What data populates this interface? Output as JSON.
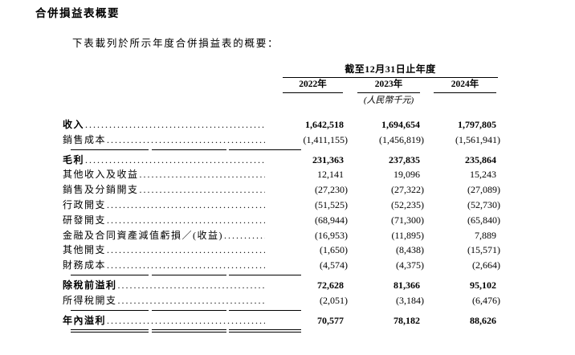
{
  "document": {
    "title": "合併損益表概要",
    "intro": "下表載列於所示年度合併損益表的概要："
  },
  "colors": {
    "background": "#ffffff",
    "text": "#000000",
    "rule": "#000000"
  },
  "table": {
    "period_header": "截至12月31日止年度",
    "columns": [
      "2022年",
      "2023年",
      "2024年"
    ],
    "unit_note": "(人民幣千元)",
    "rows": [
      {
        "label": "收入",
        "bold": true,
        "values": [
          "1,642,518",
          "1,694,654",
          "1,797,805"
        ]
      },
      {
        "label": "銷售成本",
        "bold": false,
        "values": [
          "(1,411,155)",
          "(1,456,819)",
          "(1,561,941)"
        ],
        "rule_below": "single"
      },
      {
        "label": "毛利",
        "bold": true,
        "gap_above": true,
        "values": [
          "231,363",
          "237,835",
          "235,864"
        ]
      },
      {
        "label": "其他收入及收益",
        "bold": false,
        "values": [
          "12,141",
          "19,096",
          "15,243"
        ]
      },
      {
        "label": "銷售及分銷開支",
        "bold": false,
        "values": [
          "(27,230)",
          "(27,322)",
          "(27,089)"
        ]
      },
      {
        "label": "行政開支",
        "bold": false,
        "values": [
          "(51,525)",
          "(52,235)",
          "(52,730)"
        ]
      },
      {
        "label": "研發開支",
        "bold": false,
        "values": [
          "(68,944)",
          "(71,300)",
          "(65,840)"
        ]
      },
      {
        "label": "金融及合同資產減值虧損／(收益)",
        "bold": false,
        "values": [
          "(16,953)",
          "(11,895)",
          "7,889"
        ]
      },
      {
        "label": "其他開支",
        "bold": false,
        "values": [
          "(1,650)",
          "(8,438)",
          "(15,571)"
        ]
      },
      {
        "label": "財務成本",
        "bold": false,
        "values": [
          "(4,574)",
          "(4,375)",
          "(2,664)"
        ],
        "rule_below": "single"
      },
      {
        "label": "除稅前溢利",
        "bold": true,
        "gap_above": true,
        "values": [
          "72,628",
          "81,366",
          "95,102"
        ]
      },
      {
        "label": "所得稅開支",
        "bold": false,
        "values": [
          "(2,051)",
          "(3,184)",
          "(6,476)"
        ],
        "rule_below": "single"
      },
      {
        "label": "年內溢利",
        "bold": true,
        "gap_above": true,
        "values": [
          "70,577",
          "78,182",
          "88,626"
        ],
        "rule_below": "double"
      }
    ]
  }
}
